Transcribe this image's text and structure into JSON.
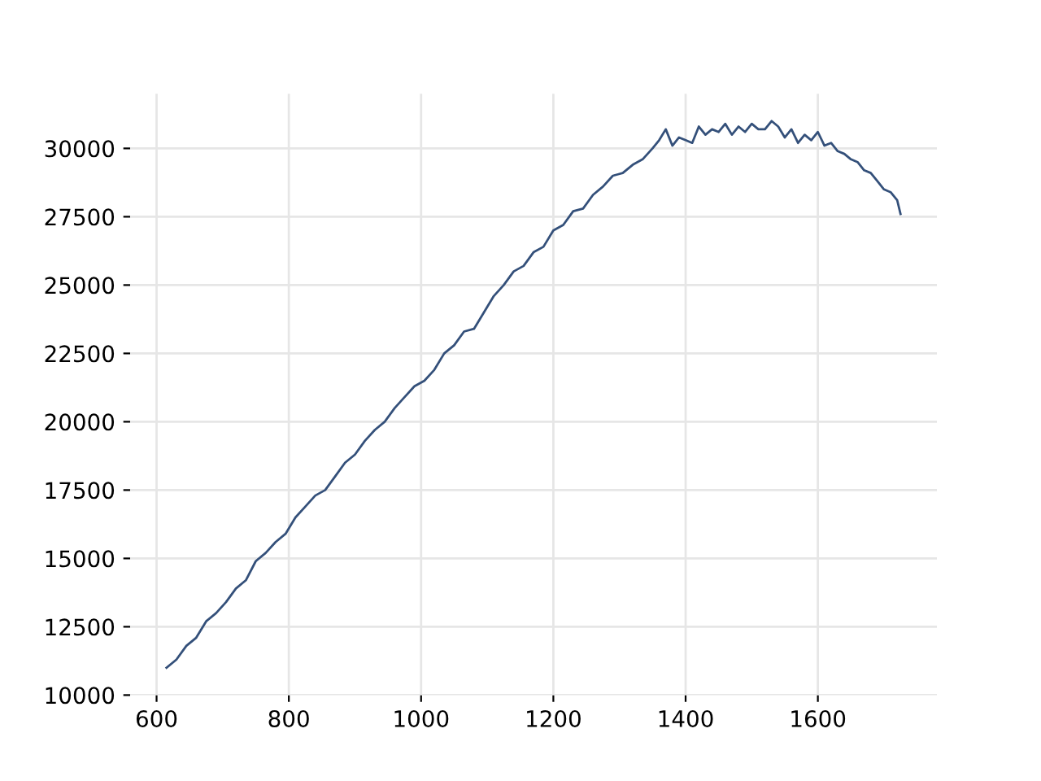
{
  "chart_data": {
    "type": "line",
    "x": [
      615,
      630,
      645,
      660,
      675,
      690,
      705,
      720,
      735,
      750,
      765,
      780,
      795,
      810,
      825,
      840,
      855,
      870,
      885,
      900,
      915,
      930,
      945,
      960,
      975,
      990,
      1005,
      1020,
      1035,
      1050,
      1065,
      1080,
      1095,
      1110,
      1125,
      1140,
      1155,
      1170,
      1185,
      1200,
      1215,
      1230,
      1245,
      1260,
      1275,
      1290,
      1305,
      1320,
      1335,
      1350,
      1360,
      1370,
      1380,
      1390,
      1400,
      1410,
      1420,
      1430,
      1440,
      1450,
      1460,
      1470,
      1480,
      1490,
      1500,
      1510,
      1520,
      1530,
      1540,
      1550,
      1560,
      1570,
      1580,
      1590,
      1600,
      1610,
      1620,
      1630,
      1640,
      1650,
      1660,
      1670,
      1680,
      1690,
      1700,
      1710,
      1720,
      1725
    ],
    "series": [
      {
        "color": "#34507a",
        "values": [
          11000,
          11300,
          11800,
          12100,
          12700,
          13000,
          13400,
          13900,
          14200,
          14900,
          15200,
          15600,
          15900,
          16500,
          16900,
          17300,
          17500,
          18000,
          18500,
          18800,
          19300,
          19700,
          20000,
          20500,
          20900,
          21300,
          21500,
          21900,
          22500,
          22800,
          23300,
          23400,
          24000,
          24600,
          25000,
          25500,
          25700,
          26200,
          26400,
          27000,
          27200,
          27700,
          27800,
          28300,
          28600,
          29000,
          29100,
          29400,
          29600,
          30000,
          30300,
          30700,
          30100,
          30400,
          30300,
          30200,
          30800,
          30500,
          30700,
          30600,
          30900,
          30500,
          30800,
          30600,
          30900,
          30700,
          30700,
          31000,
          30800,
          30400,
          30700,
          30200,
          30500,
          30300,
          30600,
          30100,
          30200,
          29900,
          29800,
          29600,
          29500,
          29200,
          29100,
          28800,
          28500,
          28400,
          28100,
          27600
        ]
      }
    ],
    "xlim": [
      560,
      1780
    ],
    "ylim": [
      10000,
      32000
    ],
    "xticks": [
      600,
      800,
      1000,
      1200,
      1400,
      1600
    ],
    "yticks": [
      10000,
      12500,
      15000,
      17500,
      20000,
      22500,
      25000,
      27500,
      30000
    ],
    "grid": true,
    "line_style": "solid",
    "marker": "none",
    "legend": false
  }
}
